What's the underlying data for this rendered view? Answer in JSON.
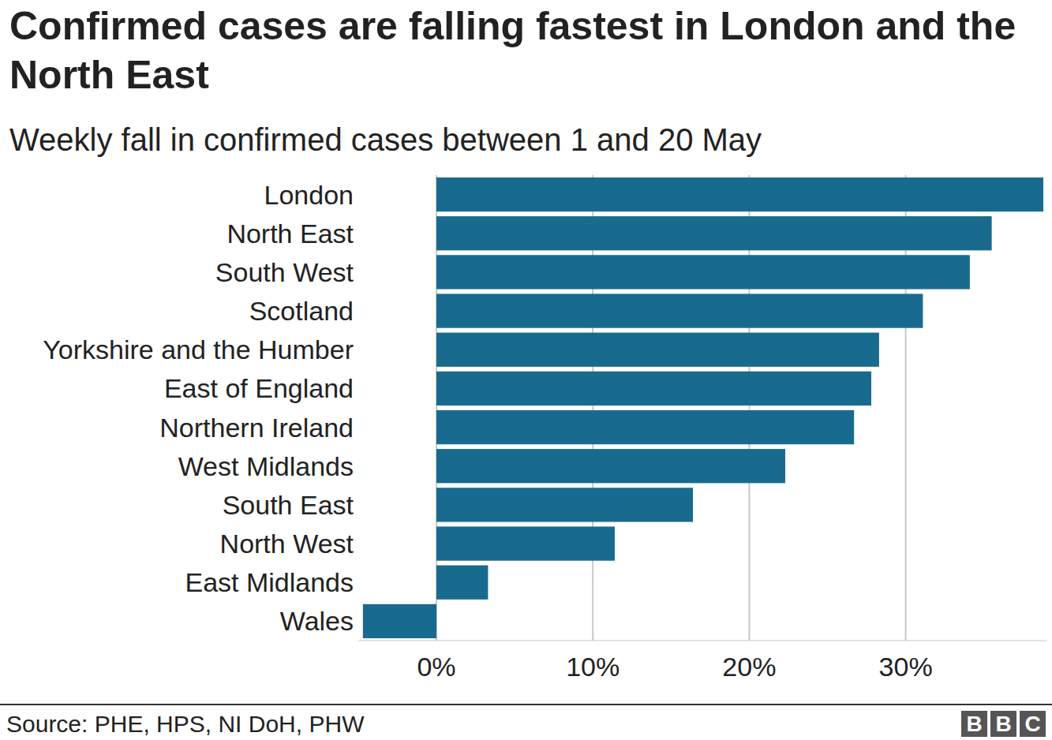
{
  "chart_data": {
    "type": "bar",
    "orientation": "horizontal",
    "title": "Confirmed cases are falling fastest in London and the North East",
    "subtitle": "Weekly fall in confirmed cases between 1 and 20 May",
    "source": "Source: PHE, HPS, NI DoH, PHW",
    "logo": "BBC",
    "categories": [
      "London",
      "North East",
      "South West",
      "Scotland",
      "Yorkshire and the Humber",
      "East of England",
      "Northern Ireland",
      "West Midlands",
      "South East",
      "North West",
      "East Midlands",
      "Wales"
    ],
    "values": [
      38.8,
      35.5,
      34.1,
      31.1,
      28.3,
      27.8,
      26.7,
      22.3,
      16.4,
      11.4,
      3.3,
      -4.7
    ],
    "color": "#186b8e",
    "xlim": [
      -5,
      39
    ],
    "xticks": [
      {
        "value": 0,
        "label": "0%"
      },
      {
        "value": 10,
        "label": "10%"
      },
      {
        "value": 20,
        "label": "20%"
      },
      {
        "value": 30,
        "label": "30%"
      }
    ],
    "grid": true
  }
}
